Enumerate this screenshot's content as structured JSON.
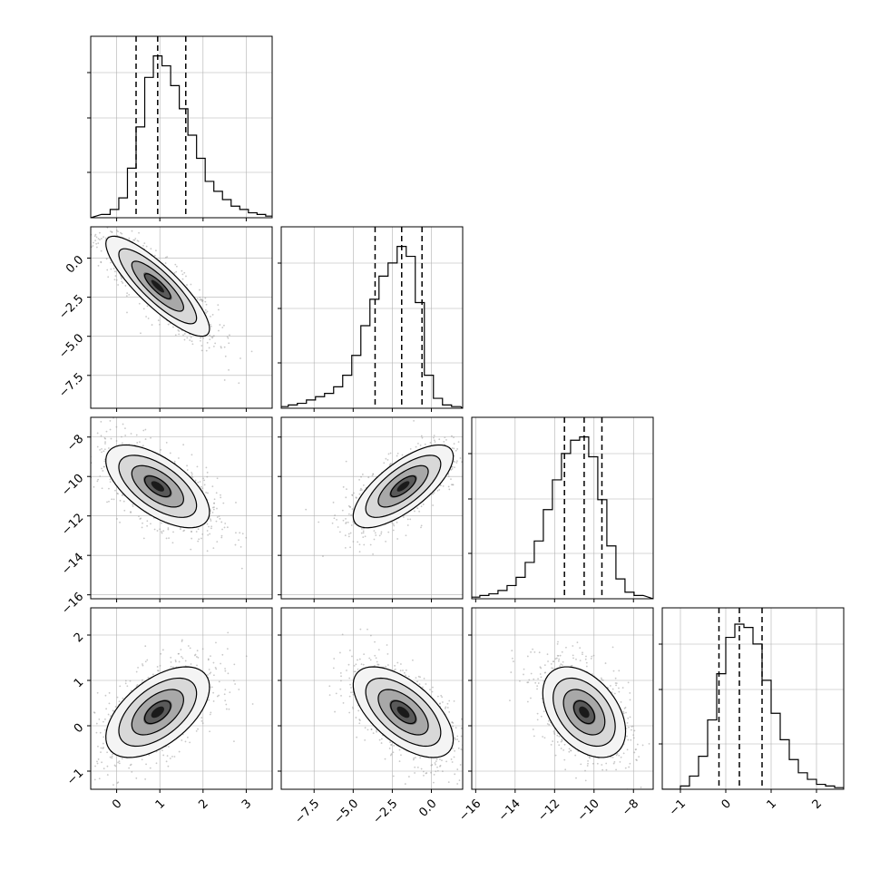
{
  "chart_data": {
    "type": "corner",
    "variables": [
      {
        "range": [
          -0.6,
          3.6
        ],
        "ticks": [
          0,
          1,
          2,
          3
        ],
        "tick_labels": [
          "0",
          "1",
          "2",
          "3"
        ],
        "quantiles": [
          0.45,
          0.95,
          1.6
        ],
        "hist_bin_width": 0.2,
        "hist": [
          0.02,
          0.05,
          0.12,
          0.3,
          0.55,
          0.85,
          0.98,
          0.92,
          0.8,
          0.66,
          0.5,
          0.36,
          0.22,
          0.16,
          0.11,
          0.07,
          0.05,
          0.03,
          0.02,
          0.01,
          0.005
        ]
      },
      {
        "range": [
          -9.6,
          2.0
        ],
        "ticks": [
          -7.5,
          -5.0,
          -2.5,
          0.0
        ],
        "tick_labels": [
          "−7.5",
          "−5.0",
          "−2.5",
          "0.0"
        ],
        "quantiles": [
          -3.6,
          -1.9,
          -0.6
        ],
        "hist_bin_width": 0.58,
        "hist": [
          0.01,
          0.02,
          0.03,
          0.05,
          0.07,
          0.09,
          0.13,
          0.2,
          0.32,
          0.5,
          0.66,
          0.8,
          0.88,
          0.98,
          0.92,
          0.64,
          0.2,
          0.06,
          0.02,
          0.01
        ]
      },
      {
        "range": [
          -16.2,
          -7.0
        ],
        "ticks": [
          -16,
          -14,
          -12,
          -10,
          -8
        ],
        "tick_labels": [
          "−16",
          "−14",
          "−12",
          "−10",
          "−8"
        ],
        "quantiles": [
          -11.5,
          -10.5,
          -9.6
        ],
        "hist_bin_width": 0.46,
        "hist": [
          0.005,
          0.01,
          0.02,
          0.03,
          0.05,
          0.08,
          0.13,
          0.22,
          0.35,
          0.54,
          0.72,
          0.88,
          0.96,
          0.98,
          0.86,
          0.6,
          0.32,
          0.12,
          0.04,
          0.02
        ]
      },
      {
        "range": [
          -1.4,
          2.6
        ],
        "ticks": [
          -1,
          0,
          1,
          2
        ],
        "tick_labels": [
          "−1",
          "0",
          "1",
          "2"
        ],
        "quantiles": [
          -0.15,
          0.3,
          0.8
        ],
        "hist_bin_width": 0.2,
        "hist": [
          0.0,
          0.02,
          0.08,
          0.2,
          0.42,
          0.7,
          0.92,
          1.0,
          0.98,
          0.88,
          0.66,
          0.46,
          0.3,
          0.18,
          0.1,
          0.06,
          0.03,
          0.02,
          0.01,
          0.005
        ]
      }
    ],
    "pairs": [
      {
        "x": 0,
        "y": 1,
        "mean": [
          0.95,
          -1.8
        ],
        "std": [
          0.6,
          1.6
        ],
        "corr": -0.85
      },
      {
        "x": 0,
        "y": 2,
        "mean": [
          0.95,
          -10.5
        ],
        "std": [
          0.6,
          1.05
        ],
        "corr": -0.62
      },
      {
        "x": 1,
        "y": 2,
        "mean": [
          -1.8,
          -10.5
        ],
        "std": [
          1.6,
          1.05
        ],
        "corr": 0.72
      },
      {
        "x": 0,
        "y": 3,
        "mean": [
          0.95,
          0.3
        ],
        "std": [
          0.6,
          0.5
        ],
        "corr": 0.55
      },
      {
        "x": 1,
        "y": 3,
        "mean": [
          -1.8,
          0.3
        ],
        "std": [
          1.6,
          0.5
        ],
        "corr": -0.6
      },
      {
        "x": 2,
        "y": 3,
        "mean": [
          -10.5,
          0.3
        ],
        "std": [
          1.05,
          0.5
        ],
        "corr": -0.42
      }
    ],
    "contour_levels_sigma": [
      0.5,
      1.0,
      1.5,
      2.0
    ],
    "grid": true,
    "colors": {
      "hist_line": "#000000",
      "quantile_line": "#000000",
      "points": "#9a9a9a",
      "grid": "#b0b0b0"
    }
  }
}
